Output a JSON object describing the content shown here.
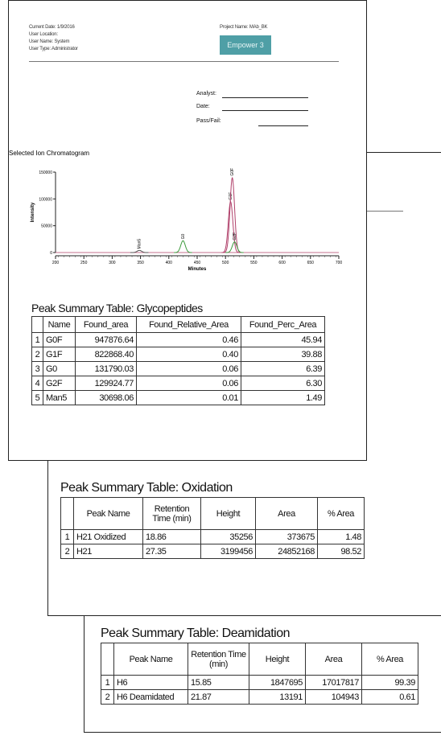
{
  "header": {
    "current_date": "Current Date: 1/9/2016",
    "user_location": "User Location:",
    "user_name": "User Name: System",
    "user_type": "User Type: Administrator",
    "project_name": "Project Name: MAb_BK",
    "logo": "Empower 3"
  },
  "signoff": {
    "analyst": "Analyst:",
    "date": "Date:",
    "pass_fail": "Pass/Fail:"
  },
  "chromatogram": {
    "title": "Selected Ion Chromatogram",
    "x_label": "Minutes",
    "y_label": "Intensity",
    "xlim": [
      200,
      700
    ],
    "ylim": [
      0,
      150000
    ],
    "xticks": [
      200,
      250,
      300,
      350,
      400,
      450,
      500,
      550,
      600,
      650,
      700
    ],
    "yticks": [
      0,
      50000,
      100000,
      150000
    ],
    "peaks": [
      {
        "label": "Man5",
        "x": 348,
        "height": 4000,
        "color": "#555555"
      },
      {
        "label": "G0",
        "x": 425,
        "height": 22000,
        "color": "#3c9a3c"
      },
      {
        "label": "G1F",
        "x": 509,
        "height": 95000,
        "color": "#b0406a"
      },
      {
        "label": "G0F",
        "x": 512,
        "height": 140000,
        "color": "#b0406a"
      },
      {
        "label": "G2F",
        "x": 516,
        "height": 20000,
        "color": "#3c9a3c"
      }
    ]
  },
  "tables": [
    {
      "title": "Peak Summary Table: Glycopeptides",
      "columns": [
        "Name",
        "Found_area",
        "Found_Relative_Area",
        "Found_Perc_Area"
      ],
      "rows": [
        [
          "1",
          "G0F",
          "947876.64",
          "0.46",
          "45.94"
        ],
        [
          "2",
          "G1F",
          "822868.40",
          "0.40",
          "39.88"
        ],
        [
          "3",
          "G0",
          "131790.03",
          "0.06",
          "6.39"
        ],
        [
          "4",
          "G2F",
          "129924.77",
          "0.06",
          "6.30"
        ],
        [
          "5",
          "Man5",
          "30698.06",
          "0.01",
          "1.49"
        ]
      ]
    },
    {
      "title": "Peak Summary Table: Oxidation",
      "columns": [
        "Peak Name",
        "Retention Time (min)",
        "Height",
        "Area",
        "% Area"
      ],
      "rows": [
        [
          "1",
          "H21 Oxidized",
          "18.86",
          "35256",
          "373675",
          "1.48"
        ],
        [
          "2",
          "H21",
          "27.35",
          "3199456",
          "24852168",
          "98.52"
        ]
      ]
    },
    {
      "title": "Peak Summary Table: Deamidation",
      "columns": [
        "Peak Name",
        "Retention Time (min)",
        "Height",
        "Area",
        "% Area"
      ],
      "rows": [
        [
          "1",
          "H6",
          "15.85",
          "1847695",
          "17017817",
          "99.39"
        ],
        [
          "2",
          "H6 Deamidated",
          "21.87",
          "13191",
          "104943",
          "0.61"
        ]
      ]
    }
  ]
}
